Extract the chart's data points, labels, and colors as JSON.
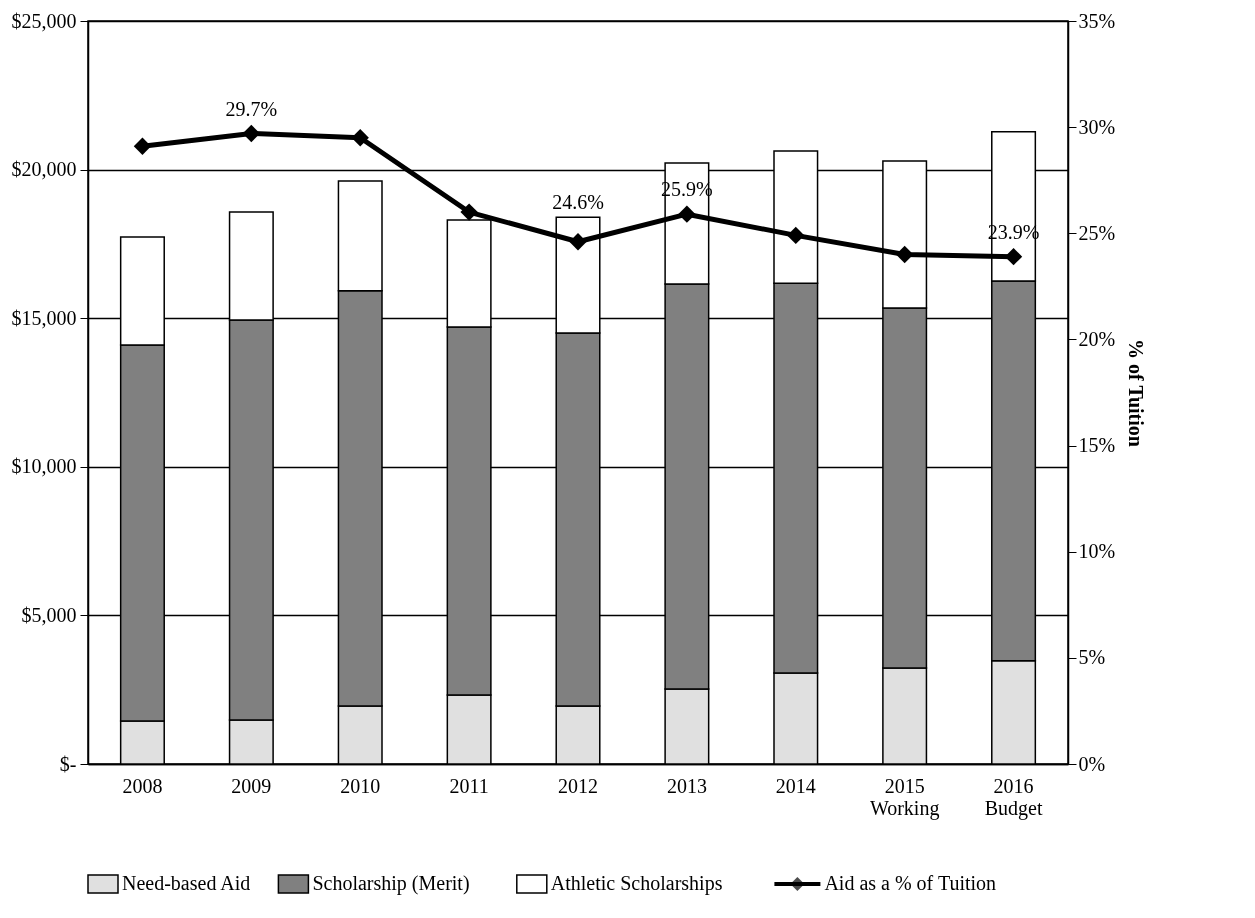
{
  "chart_data": {
    "type": "bar",
    "stacked": true,
    "categories": [
      "2008",
      "2009",
      "2010",
      "2011",
      "2012",
      "2013",
      "2014",
      "2015\nWorking",
      "2016\nBudget"
    ],
    "series": [
      {
        "name": "Need-based Aid",
        "color": "#e0e0e0",
        "values": [
          1450,
          1480,
          1950,
          2320,
          1950,
          2520,
          3060,
          3230,
          3470
        ]
      },
      {
        "name": "Scholarship (Merit)",
        "color": "#808080",
        "values": [
          12650,
          13460,
          13970,
          12380,
          12550,
          13630,
          13120,
          12110,
          12780
        ]
      },
      {
        "name": "Athletic Scholarships",
        "color": "#ffffff",
        "values": [
          3630,
          3630,
          3700,
          3600,
          3900,
          4070,
          4450,
          4950,
          5020
        ]
      },
      {
        "name": "Aid as a % of Tuition",
        "type": "line",
        "axis": "y2",
        "color": "#000000",
        "marker": "diamond",
        "values": [
          29.1,
          29.7,
          29.5,
          26.0,
          24.6,
          25.9,
          24.9,
          24.0,
          23.9
        ],
        "value_labels": [
          null,
          "29.7%",
          null,
          null,
          "24.6%",
          "25.9%",
          null,
          null,
          "23.9%"
        ]
      }
    ],
    "ylim": [
      0,
      25000
    ],
    "yticks": [
      {
        "value": 0,
        "label": "$-"
      },
      {
        "value": 5000,
        "label": "$5,000"
      },
      {
        "value": 10000,
        "label": "$10,000"
      },
      {
        "value": 15000,
        "label": "$15,000"
      },
      {
        "value": 20000,
        "label": "$20,000"
      },
      {
        "value": 25000,
        "label": "$25,000"
      }
    ],
    "y2lim": [
      0,
      35
    ],
    "y2ticks": [
      {
        "value": 0,
        "label": "0%"
      },
      {
        "value": 5,
        "label": "5%"
      },
      {
        "value": 10,
        "label": "10%"
      },
      {
        "value": 15,
        "label": "15%"
      },
      {
        "value": 20,
        "label": "20%"
      },
      {
        "value": 25,
        "label": "25%"
      },
      {
        "value": 30,
        "label": "30%"
      },
      {
        "value": 35,
        "label": "35%"
      }
    ],
    "y2label": "% of Tuition",
    "grid": "y",
    "legend": "bottom"
  }
}
